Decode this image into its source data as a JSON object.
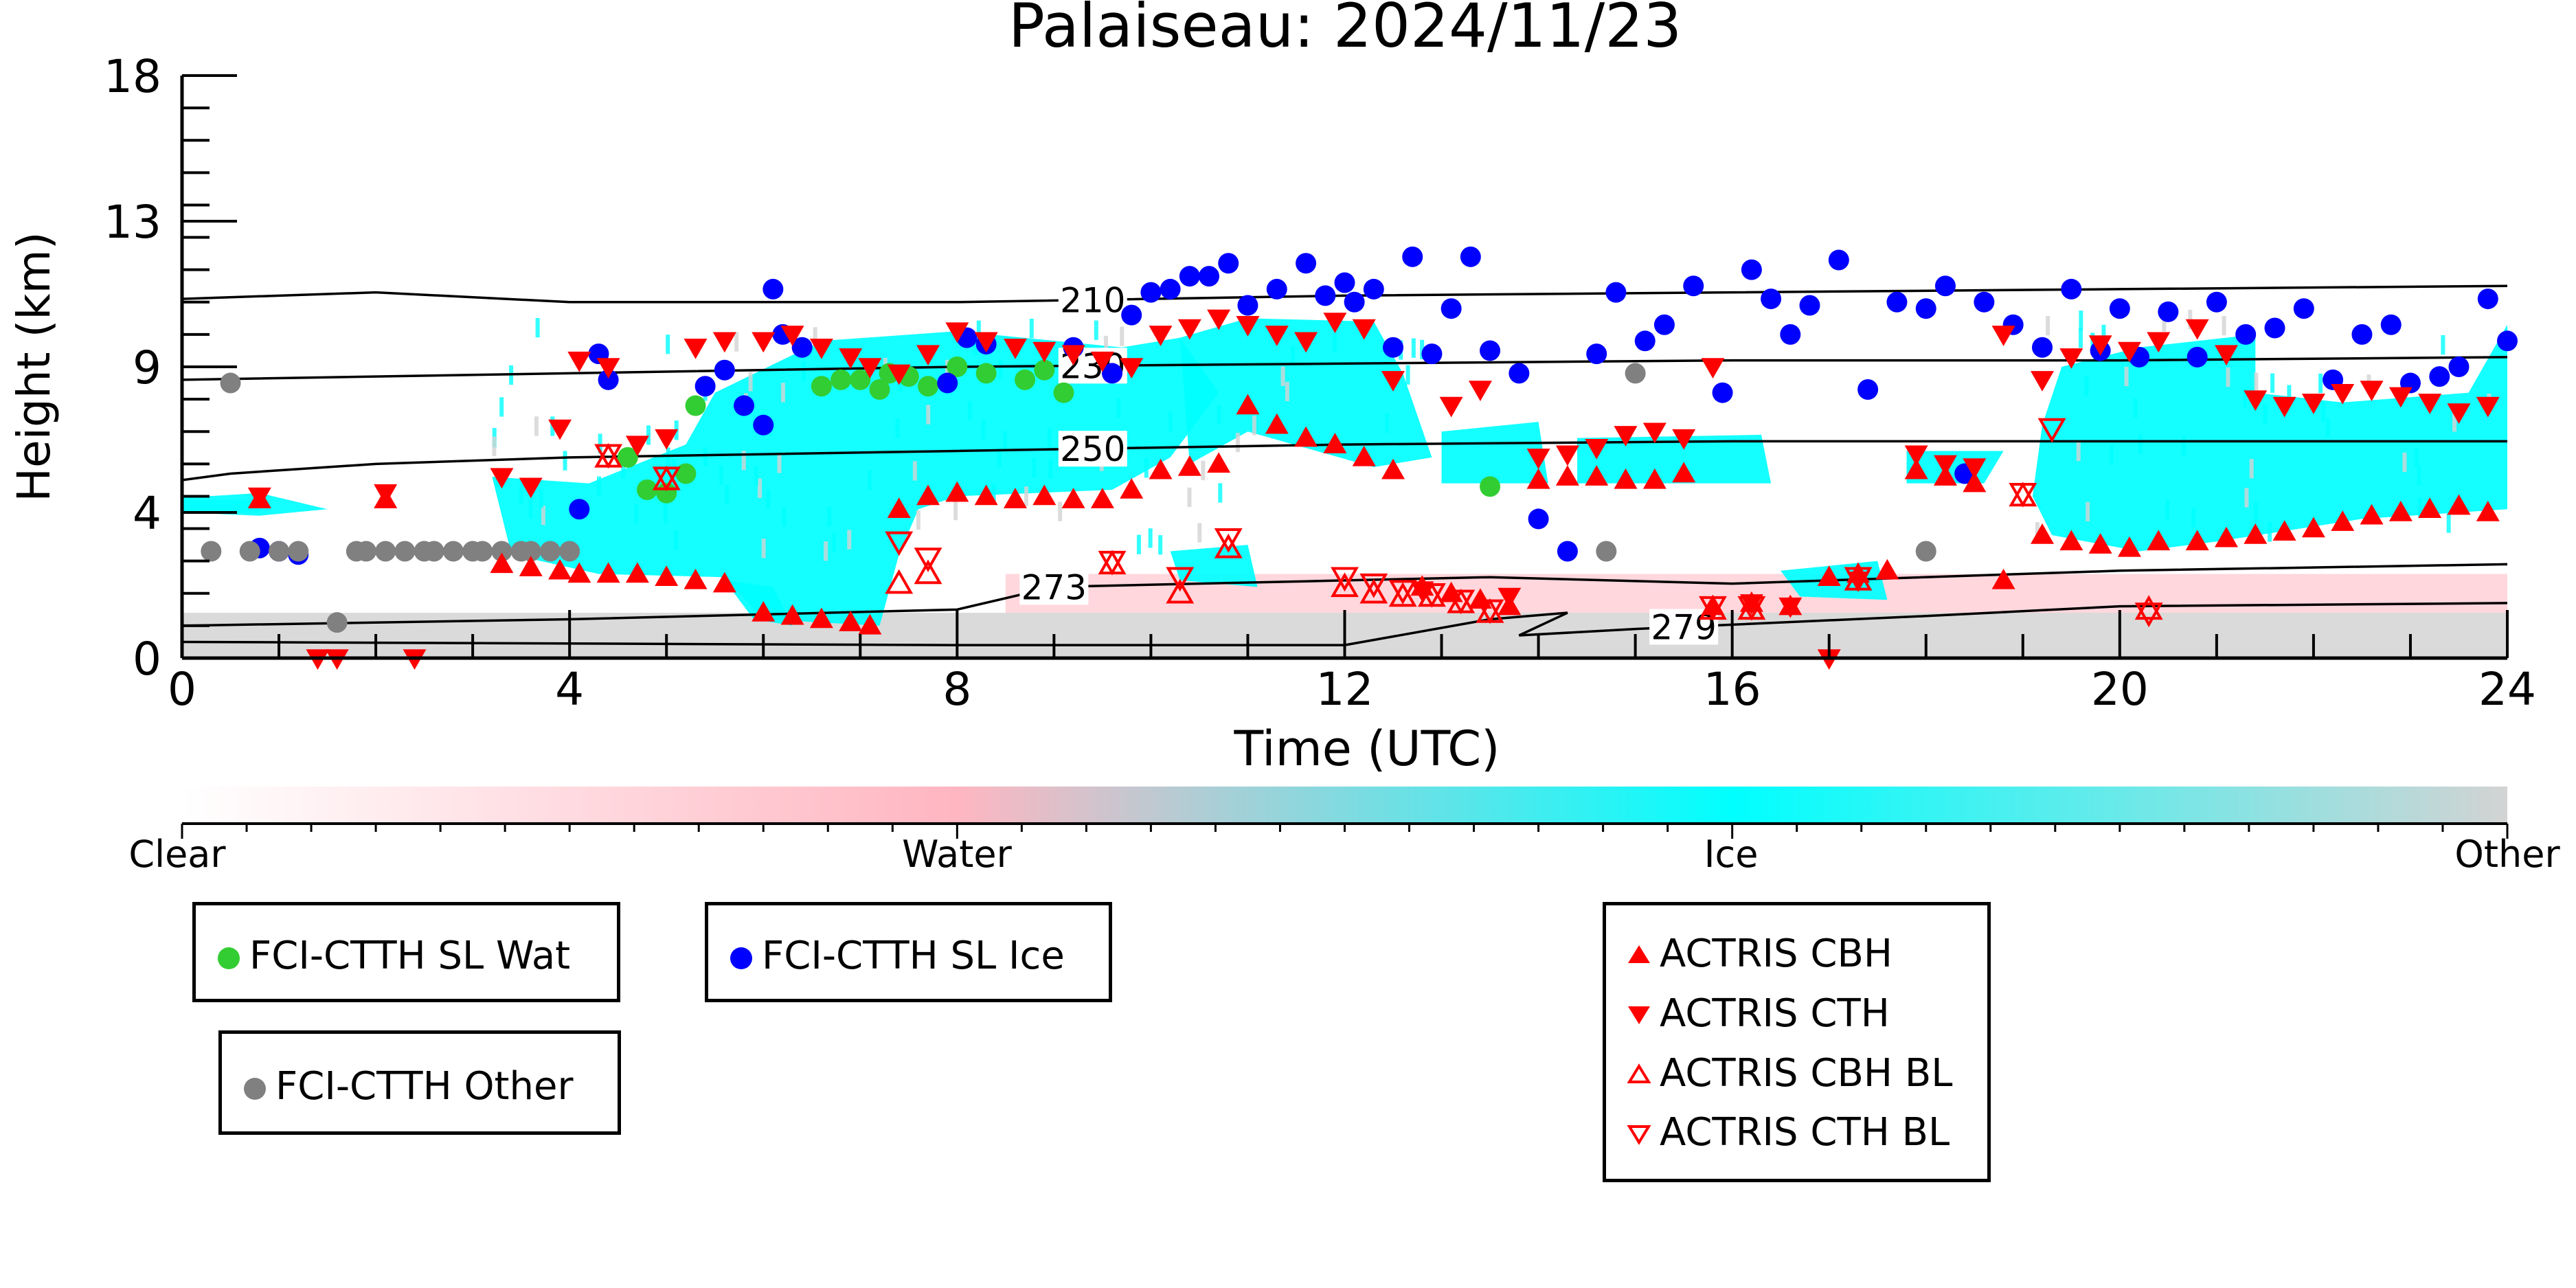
{
  "chart_data": {
    "type": "scatter",
    "title": "Palaiseau: 2024/11/23",
    "xlabel": "Time (UTC)",
    "ylabel": "Height (km)",
    "xlim": [
      0,
      24
    ],
    "ylim": [
      0,
      18
    ],
    "x_ticks": [
      "0",
      "4",
      "8",
      "12",
      "16",
      "20",
      "24"
    ],
    "y_ticks": [
      "0",
      "4",
      "9",
      "13",
      "18"
    ],
    "background": "time-height cloud phase classification (Clear / Water / Ice / Other)",
    "colorbar": {
      "labels": [
        "Clear",
        "Water",
        "Ice",
        "Other"
      ],
      "colors": [
        "#ffffff",
        "#ffb6c1",
        "#00ffff",
        "#d3d3d3"
      ]
    },
    "isotherms": [
      {
        "label": "210",
        "x": [
          0,
          2,
          4,
          8,
          12,
          16,
          20,
          24
        ],
        "y": [
          11.1,
          11.3,
          11.0,
          11.0,
          11.2,
          11.3,
          11.4,
          11.5
        ]
      },
      {
        "label": "230",
        "x": [
          0,
          4,
          8,
          12,
          16,
          20,
          24
        ],
        "y": [
          8.6,
          8.8,
          9.0,
          9.1,
          9.2,
          9.2,
          9.3
        ]
      },
      {
        "label": "250",
        "x": [
          0,
          0.5,
          2,
          4,
          6,
          8,
          10,
          12,
          16,
          20,
          24
        ],
        "y": [
          5.5,
          5.7,
          6.0,
          6.2,
          6.3,
          6.4,
          6.5,
          6.6,
          6.7,
          6.7,
          6.7
        ]
      },
      {
        "label": "273",
        "x": [
          0,
          4,
          8,
          9,
          12,
          13.5,
          16,
          20,
          24
        ],
        "y": [
          1.0,
          1.2,
          1.5,
          2.2,
          2.4,
          2.5,
          2.3,
          2.7,
          2.9
        ]
      },
      {
        "label": "279",
        "x": [
          0,
          8,
          12,
          13.5,
          14.3,
          13.8,
          15,
          18,
          20,
          24
        ],
        "y": [
          0.5,
          0.4,
          0.4,
          1.2,
          1.4,
          0.7,
          0.9,
          1.3,
          1.6,
          1.7
        ]
      }
    ],
    "series": [
      {
        "name": "FCI-CTTH SL Wat",
        "color": "#32cd32",
        "marker": "circle",
        "x": [
          4.6,
          4.8,
          5.0,
          5.2,
          5.3,
          6.6,
          6.8,
          7.0,
          7.2,
          7.3,
          7.5,
          7.7,
          8.0,
          8.3,
          8.7,
          8.9,
          9.1,
          13.5
        ],
        "y": [
          6.2,
          5.2,
          5.1,
          5.7,
          7.8,
          8.4,
          8.6,
          8.6,
          8.3,
          8.8,
          8.7,
          8.4,
          9.0,
          8.8,
          8.6,
          8.9,
          8.2,
          5.3
        ]
      },
      {
        "name": "FCI-CTTH SL Ice",
        "color": "#0000ff",
        "marker": "circle",
        "x": [
          0.8,
          1.0,
          1.2,
          4.1,
          4.3,
          4.4,
          5.4,
          5.6,
          5.8,
          6.0,
          6.1,
          6.2,
          6.4,
          7.9,
          8.1,
          8.3,
          9.2,
          9.6,
          9.8,
          10.0,
          10.2,
          10.4,
          10.6,
          10.8,
          11.0,
          11.3,
          11.6,
          11.8,
          12.0,
          12.1,
          12.3,
          12.5,
          12.7,
          12.9,
          13.1,
          13.3,
          13.5,
          13.8,
          14.0,
          14.3,
          14.6,
          14.8,
          15.1,
          15.3,
          15.6,
          15.9,
          16.2,
          16.4,
          16.6,
          16.8,
          17.1,
          17.4,
          17.7,
          18.0,
          18.2,
          18.4,
          18.6,
          18.9,
          19.2,
          19.5,
          19.8,
          20.0,
          20.2,
          20.5,
          20.8,
          21.0,
          21.3,
          21.6,
          21.9,
          22.2,
          22.5,
          22.8,
          23.0,
          23.3,
          23.5,
          23.8,
          24.0
        ],
        "y": [
          3.4,
          3.3,
          3.2,
          4.6,
          9.4,
          8.6,
          8.4,
          8.9,
          7.8,
          7.2,
          11.4,
          10.0,
          9.6,
          8.5,
          9.9,
          9.7,
          9.6,
          8.8,
          10.6,
          11.3,
          11.4,
          11.8,
          11.8,
          12.2,
          10.9,
          11.4,
          12.2,
          11.2,
          11.6,
          11.0,
          11.4,
          9.6,
          12.4,
          9.4,
          10.8,
          12.4,
          9.5,
          8.8,
          4.3,
          3.3,
          9.4,
          11.3,
          9.8,
          10.3,
          11.5,
          8.2,
          12.0,
          11.1,
          10.0,
          10.9,
          12.3,
          8.3,
          11.0,
          10.8,
          11.5,
          5.7,
          11.0,
          10.3,
          9.6,
          11.4,
          9.5,
          10.8,
          9.3,
          10.7,
          9.3,
          11.0,
          10.0,
          10.2,
          10.8,
          8.6,
          10.0,
          10.3,
          8.5,
          8.7,
          9.0,
          11.1,
          9.8
        ]
      },
      {
        "name": "FCI-CTTH Other",
        "color": "#808080",
        "marker": "circle",
        "x": [
          0.3,
          0.5,
          0.7,
          1.0,
          1.2,
          1.6,
          1.8,
          1.9,
          2.1,
          2.3,
          2.5,
          2.6,
          2.8,
          3.0,
          3.1,
          3.3,
          3.5,
          3.6,
          3.8,
          4.0,
          14.7,
          15.0,
          18.0
        ],
        "y": [
          3.3,
          8.5,
          3.3,
          3.3,
          3.3,
          1.1,
          3.3,
          3.3,
          3.3,
          3.3,
          3.3,
          3.3,
          3.3,
          3.3,
          3.3,
          3.3,
          3.3,
          3.3,
          3.3,
          3.3,
          3.3,
          8.8,
          3.3
        ]
      },
      {
        "name": "ACTRIS CBH",
        "color": "#ff0000",
        "marker": "triangle-up",
        "x": [
          0.8,
          2.1,
          3.3,
          3.6,
          3.9,
          4.1,
          4.4,
          4.7,
          5.0,
          5.3,
          5.6,
          6.0,
          6.3,
          6.6,
          6.9,
          7.1,
          7.4,
          7.7,
          8.0,
          8.3,
          8.6,
          8.9,
          9.2,
          9.5,
          9.8,
          10.1,
          10.4,
          10.7,
          11.0,
          11.3,
          11.6,
          11.9,
          12.2,
          12.5,
          12.8,
          13.1,
          13.4,
          13.7,
          14.0,
          14.3,
          14.6,
          14.9,
          15.2,
          15.5,
          15.8,
          16.2,
          16.6,
          17.0,
          17.3,
          17.6,
          17.9,
          18.2,
          18.5,
          18.8,
          19.2,
          19.5,
          19.8,
          20.1,
          20.4,
          20.8,
          21.1,
          21.4,
          21.7,
          22.0,
          22.3,
          22.6,
          22.9,
          23.2,
          23.5,
          23.8
        ],
        "y": [
          4.9,
          4.9,
          2.9,
          2.8,
          2.7,
          2.6,
          2.6,
          2.6,
          2.5,
          2.4,
          2.3,
          1.4,
          1.3,
          1.2,
          1.1,
          1.0,
          4.6,
          5.0,
          5.1,
          5.0,
          4.9,
          5.0,
          4.9,
          4.9,
          5.2,
          5.8,
          5.9,
          6.0,
          7.8,
          7.2,
          6.8,
          6.6,
          6.2,
          5.8,
          2.2,
          2.0,
          1.8,
          1.6,
          5.5,
          5.6,
          5.6,
          5.5,
          5.5,
          5.7,
          1.6,
          1.7,
          1.6,
          2.5,
          2.6,
          2.7,
          5.8,
          5.6,
          5.4,
          2.4,
          3.8,
          3.6,
          3.5,
          3.4,
          3.6,
          3.6,
          3.7,
          3.8,
          3.9,
          4.0,
          4.2,
          4.4,
          4.5,
          4.6,
          4.7,
          4.5
        ]
      },
      {
        "name": "ACTRIS CTH",
        "color": "#ff0000",
        "marker": "triangle-down",
        "x": [
          0.8,
          1.4,
          1.6,
          2.1,
          2.4,
          3.3,
          3.6,
          3.9,
          4.1,
          4.4,
          4.7,
          5.0,
          5.3,
          5.6,
          6.0,
          6.3,
          6.6,
          6.9,
          7.1,
          7.4,
          7.7,
          8.0,
          8.3,
          8.6,
          8.9,
          9.2,
          9.5,
          9.8,
          10.1,
          10.4,
          10.7,
          11.0,
          11.3,
          11.6,
          11.9,
          12.2,
          12.5,
          12.8,
          13.1,
          13.4,
          13.7,
          14.0,
          14.3,
          14.6,
          14.9,
          15.2,
          15.5,
          15.8,
          16.2,
          16.6,
          17.0,
          17.3,
          17.9,
          18.2,
          18.5,
          18.8,
          19.2,
          19.5,
          19.8,
          20.1,
          20.4,
          20.8,
          21.1,
          21.4,
          21.7,
          22.0,
          22.3,
          22.6,
          22.9,
          23.2,
          23.5,
          23.8
        ],
        "y": [
          5.0,
          0.0,
          0.0,
          5.1,
          0.0,
          5.6,
          5.3,
          7.1,
          9.2,
          9.0,
          6.6,
          6.8,
          9.6,
          9.8,
          9.8,
          10.0,
          9.6,
          9.3,
          9.0,
          8.8,
          9.4,
          10.1,
          9.8,
          9.6,
          9.5,
          9.4,
          9.2,
          9.0,
          10.0,
          10.2,
          10.5,
          10.3,
          10.0,
          9.8,
          10.4,
          10.2,
          8.6,
          2.1,
          7.8,
          8.3,
          1.9,
          6.2,
          6.3,
          6.5,
          6.9,
          7.0,
          6.8,
          9.0,
          1.7,
          1.6,
          0.0,
          2.4,
          6.3,
          6.0,
          5.9,
          10.0,
          8.6,
          9.3,
          9.7,
          9.5,
          9.8,
          10.2,
          9.4,
          8.0,
          7.8,
          7.9,
          8.2,
          8.3,
          8.1,
          7.9,
          7.6,
          7.8
        ]
      },
      {
        "name": "ACTRIS CBH BL",
        "color": "#ff0000",
        "marker": "triangle-up-open",
        "x": [
          4.4,
          5.0,
          7.4,
          7.7,
          9.6,
          10.3,
          10.8,
          12.0,
          12.3,
          12.6,
          12.9,
          13.2,
          13.5,
          15.8,
          16.2,
          17.3,
          19.0,
          20.3
        ],
        "y": [
          6.2,
          5.5,
          2.3,
          2.6,
          2.9,
          2.0,
          3.4,
          2.2,
          2.0,
          1.9,
          1.9,
          1.7,
          1.4,
          1.5,
          1.5,
          2.4,
          5.0,
          1.5
        ]
      },
      {
        "name": "ACTRIS CTH BL",
        "color": "#ff0000",
        "marker": "triangle-down-open",
        "x": [
          4.4,
          5.0,
          7.4,
          7.7,
          9.6,
          10.3,
          10.8,
          12.0,
          12.3,
          12.6,
          12.9,
          13.2,
          13.5,
          15.8,
          16.2,
          17.3,
          19.0,
          19.3,
          20.3
        ],
        "y": [
          6.3,
          5.6,
          3.6,
          3.1,
          3.0,
          2.5,
          3.7,
          2.5,
          2.3,
          2.1,
          2.0,
          1.8,
          1.5,
          1.6,
          1.6,
          2.5,
          5.1,
          7.1,
          1.4
        ]
      }
    ]
  }
}
